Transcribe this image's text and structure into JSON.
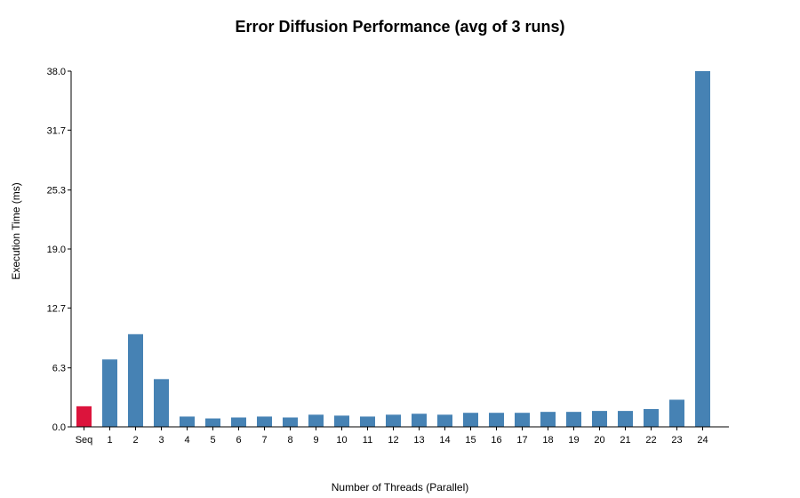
{
  "chart_data": {
    "type": "bar",
    "title": "Error Diffusion Performance (avg of 3 runs)",
    "xlabel": "Number of Threads (Parallel)",
    "ylabel": "Execution Time (ms)",
    "ylim": [
      0,
      38.0
    ],
    "yticks": [
      "0.0",
      "6.3",
      "12.7",
      "19.0",
      "25.3",
      "31.7",
      "38.0"
    ],
    "categories": [
      "Seq",
      "1",
      "2",
      "3",
      "4",
      "5",
      "6",
      "7",
      "8",
      "9",
      "10",
      "11",
      "12",
      "13",
      "14",
      "15",
      "16",
      "17",
      "18",
      "19",
      "20",
      "21",
      "22",
      "23",
      "24"
    ],
    "values": [
      2.2,
      7.2,
      9.9,
      5.1,
      1.1,
      0.9,
      1.0,
      1.1,
      1.0,
      1.3,
      1.2,
      1.1,
      1.3,
      1.4,
      1.3,
      1.5,
      1.5,
      1.5,
      1.6,
      1.6,
      1.7,
      1.7,
      1.9,
      2.9,
      38.0
    ],
    "colors": {
      "sequential": "#dc143c",
      "parallel": "#4682b4",
      "axis": "#000000"
    },
    "grid": false,
    "legend": "none"
  }
}
